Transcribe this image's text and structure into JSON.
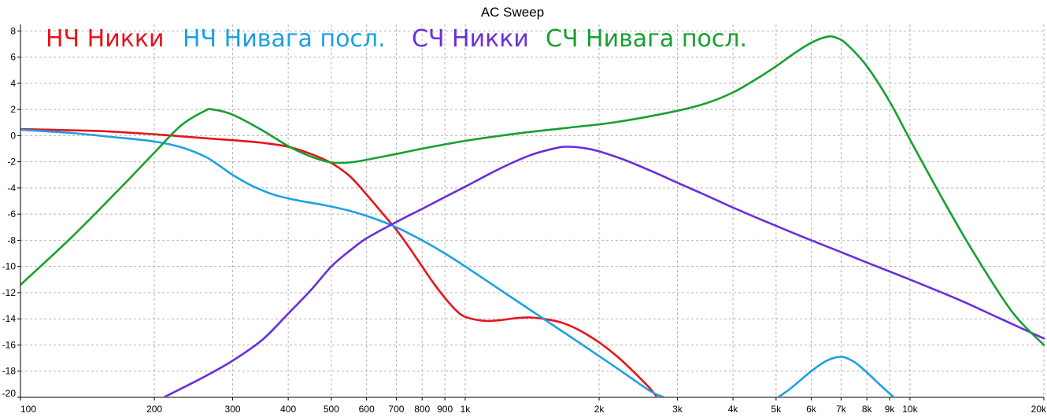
{
  "chart_data": {
    "type": "line",
    "title": "AC Sweep",
    "xscale": "log",
    "xlim": [
      100,
      20000
    ],
    "ylim": [
      -20,
      8.5
    ],
    "x_ticks": [
      {
        "v": 100,
        "label": "100"
      },
      {
        "v": 200,
        "label": "200"
      },
      {
        "v": 300,
        "label": "300"
      },
      {
        "v": 400,
        "label": "400"
      },
      {
        "v": 500,
        "label": "500"
      },
      {
        "v": 600,
        "label": "600"
      },
      {
        "v": 700,
        "label": "700"
      },
      {
        "v": 800,
        "label": "800"
      },
      {
        "v": 900,
        "label": "900"
      },
      {
        "v": 1000,
        "label": "1k"
      },
      {
        "v": 2000,
        "label": "2k"
      },
      {
        "v": 3000,
        "label": "3k"
      },
      {
        "v": 4000,
        "label": "4k"
      },
      {
        "v": 5000,
        "label": "5k"
      },
      {
        "v": 6000,
        "label": "6k"
      },
      {
        "v": 7000,
        "label": "7k"
      },
      {
        "v": 8000,
        "label": "8k"
      },
      {
        "v": 9000,
        "label": "9k"
      },
      {
        "v": 10000,
        "label": "10k"
      },
      {
        "v": 20000,
        "label": "20k"
      }
    ],
    "y_ticks": [
      {
        "v": 8,
        "label": "8"
      },
      {
        "v": 6,
        "label": "6"
      },
      {
        "v": 4,
        "label": "4"
      },
      {
        "v": 2,
        "label": "2"
      },
      {
        "v": 0,
        "label": "0"
      },
      {
        "v": -2,
        "label": "-2"
      },
      {
        "v": -4,
        "label": "-4"
      },
      {
        "v": -6,
        "label": "-6"
      },
      {
        "v": -8,
        "label": "-8"
      },
      {
        "v": -10,
        "label": "-10"
      },
      {
        "v": -12,
        "label": "-12"
      },
      {
        "v": -14,
        "label": "-14"
      },
      {
        "v": -16,
        "label": "-16"
      },
      {
        "v": -18,
        "label": "-18"
      },
      {
        "v": -20,
        "label": "-20"
      }
    ],
    "grid": true,
    "legend_position": "top-left",
    "series": [
      {
        "name": "НЧ Никки",
        "color": "#e8141c",
        "points": [
          [
            100,
            0.5
          ],
          [
            150,
            0.35
          ],
          [
            200,
            0.1
          ],
          [
            250,
            -0.15
          ],
          [
            300,
            -0.35
          ],
          [
            350,
            -0.55
          ],
          [
            400,
            -0.85
          ],
          [
            450,
            -1.4
          ],
          [
            500,
            -2.1
          ],
          [
            550,
            -3.1
          ],
          [
            600,
            -4.5
          ],
          [
            650,
            -5.9
          ],
          [
            700,
            -7.2
          ],
          [
            750,
            -8.6
          ],
          [
            800,
            -10.0
          ],
          [
            850,
            -11.3
          ],
          [
            900,
            -12.4
          ],
          [
            950,
            -13.3
          ],
          [
            1000,
            -13.85
          ],
          [
            1100,
            -14.15
          ],
          [
            1200,
            -14.1
          ],
          [
            1300,
            -13.95
          ],
          [
            1400,
            -13.9
          ],
          [
            1500,
            -14.0
          ],
          [
            1650,
            -14.3
          ],
          [
            1800,
            -14.85
          ],
          [
            2000,
            -15.8
          ],
          [
            2200,
            -16.9
          ],
          [
            2400,
            -18.1
          ],
          [
            2600,
            -19.3
          ],
          [
            2700,
            -20.0
          ]
        ]
      },
      {
        "name": "НЧ Нивага посл.",
        "color": "#1ea0e6",
        "points": [
          [
            100,
            0.45
          ],
          [
            130,
            0.2
          ],
          [
            160,
            -0.1
          ],
          [
            200,
            -0.45
          ],
          [
            230,
            -0.9
          ],
          [
            260,
            -1.6
          ],
          [
            280,
            -2.3
          ],
          [
            300,
            -3.0
          ],
          [
            330,
            -3.8
          ],
          [
            370,
            -4.5
          ],
          [
            420,
            -4.95
          ],
          [
            480,
            -5.3
          ],
          [
            550,
            -5.75
          ],
          [
            620,
            -6.3
          ],
          [
            700,
            -7.0
          ],
          [
            800,
            -8.0
          ],
          [
            900,
            -9.0
          ],
          [
            1000,
            -10.0
          ],
          [
            1200,
            -11.8
          ],
          [
            1500,
            -14.0
          ],
          [
            1800,
            -15.8
          ],
          [
            2200,
            -17.8
          ],
          [
            2600,
            -19.5
          ],
          [
            2800,
            -20.0
          ],
          [
            5050,
            -20.0
          ],
          [
            5400,
            -19.3
          ],
          [
            6000,
            -18.0
          ],
          [
            6500,
            -17.2
          ],
          [
            7000,
            -16.9
          ],
          [
            7500,
            -17.3
          ],
          [
            8000,
            -18.1
          ],
          [
            8600,
            -19.1
          ],
          [
            9200,
            -20.0
          ]
        ]
      },
      {
        "name": "СЧ Никки",
        "color": "#6a2ee0",
        "points": [
          [
            210,
            -20.0
          ],
          [
            260,
            -18.4
          ],
          [
            300,
            -17.2
          ],
          [
            350,
            -15.6
          ],
          [
            400,
            -13.6
          ],
          [
            450,
            -11.8
          ],
          [
            500,
            -10.0
          ],
          [
            550,
            -8.8
          ],
          [
            600,
            -7.85
          ],
          [
            700,
            -6.6
          ],
          [
            800,
            -5.6
          ],
          [
            900,
            -4.7
          ],
          [
            1000,
            -3.9
          ],
          [
            1200,
            -2.5
          ],
          [
            1400,
            -1.5
          ],
          [
            1600,
            -0.95
          ],
          [
            1700,
            -0.85
          ],
          [
            1850,
            -0.95
          ],
          [
            2000,
            -1.2
          ],
          [
            2300,
            -1.9
          ],
          [
            2700,
            -2.9
          ],
          [
            3000,
            -3.6
          ],
          [
            3500,
            -4.6
          ],
          [
            4000,
            -5.5
          ],
          [
            5000,
            -6.9
          ],
          [
            6000,
            -8.0
          ],
          [
            7000,
            -8.9
          ],
          [
            8000,
            -9.7
          ],
          [
            10000,
            -11.0
          ],
          [
            13000,
            -12.6
          ],
          [
            16000,
            -14.0
          ],
          [
            20000,
            -15.5
          ]
        ]
      },
      {
        "name": "СЧ Нивага посл.",
        "color": "#18a030",
        "points": [
          [
            100,
            -11.4
          ],
          [
            130,
            -7.8
          ],
          [
            170,
            -3.8
          ],
          [
            200,
            -1.3
          ],
          [
            230,
            0.8
          ],
          [
            260,
            1.9
          ],
          [
            270,
            2.0
          ],
          [
            300,
            1.6
          ],
          [
            350,
            0.4
          ],
          [
            400,
            -0.8
          ],
          [
            450,
            -1.6
          ],
          [
            500,
            -2.05
          ],
          [
            550,
            -2.05
          ],
          [
            600,
            -1.85
          ],
          [
            700,
            -1.4
          ],
          [
            800,
            -1.0
          ],
          [
            1000,
            -0.4
          ],
          [
            1300,
            0.15
          ],
          [
            1700,
            0.6
          ],
          [
            2200,
            1.05
          ],
          [
            3000,
            1.9
          ],
          [
            3500,
            2.5
          ],
          [
            4000,
            3.3
          ],
          [
            4500,
            4.3
          ],
          [
            5000,
            5.3
          ],
          [
            5500,
            6.3
          ],
          [
            6000,
            7.1
          ],
          [
            6500,
            7.55
          ],
          [
            6800,
            7.5
          ],
          [
            7200,
            7.0
          ],
          [
            8000,
            5.3
          ],
          [
            9000,
            2.6
          ],
          [
            10000,
            -0.3
          ],
          [
            12000,
            -5.2
          ],
          [
            14000,
            -9.1
          ],
          [
            17000,
            -13.5
          ],
          [
            20000,
            -16.0
          ]
        ]
      }
    ]
  }
}
